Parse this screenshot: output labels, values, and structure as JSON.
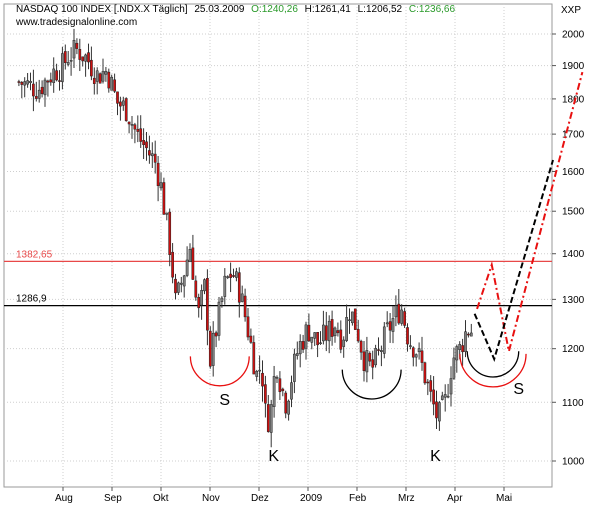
{
  "header": {
    "title": "NASDAQ 100 INDEX [.NDX.X Täglich]",
    "date": "25.03.2009",
    "open": "O:1240,26",
    "high": "H:1261,41",
    "low": "L:1206,52",
    "close": "C:1236,66",
    "website": "www.tradesignalonline.com",
    "currency": "XXP"
  },
  "colors": {
    "open": "#2a9a2a",
    "close": "#2a9a2a",
    "resistance_line": "#e84848",
    "support_line": "#000000",
    "projection_red": "#e81010",
    "projection_black": "#000000",
    "up_candle": "#808080",
    "down_candle": "#cc1010"
  },
  "chart_data": {
    "type": "candlestick",
    "x_tick_labels": [
      "Aug",
      "Sep",
      "Okt",
      "Nov",
      "Dez",
      "2009",
      "Feb",
      "Mrz",
      "Apr",
      "Mai"
    ],
    "y_ticks": [
      1000,
      1100,
      1200,
      1300,
      1400,
      1500,
      1600,
      1700,
      1800,
      1900,
      2000
    ],
    "ylim": [
      950,
      2060
    ],
    "y_scale": "log",
    "horizontal_levels": [
      {
        "label": "1382,65",
        "value": 1382.65,
        "color": "#e84848"
      },
      {
        "label": "1286,9",
        "value": 1286.9,
        "color": "#000000"
      }
    ],
    "pattern_labels": [
      {
        "text": "S",
        "month_pos": 3.3,
        "value": 1095
      },
      {
        "text": "K",
        "month_pos": 4.3,
        "value": 1000
      },
      {
        "text": "K",
        "month_pos": 7.6,
        "value": 1000
      },
      {
        "text": "S",
        "month_pos": 9.3,
        "value": 1115
      }
    ],
    "pattern_arcs": [
      {
        "color": "#e81010",
        "month_start": 2.6,
        "month_end": 3.8,
        "value": 1185
      },
      {
        "color": "#000000",
        "month_start": 5.7,
        "month_end": 6.9,
        "value": 1160
      },
      {
        "color": "#000000",
        "month_start": 8.25,
        "month_end": 9.3,
        "value": 1195
      },
      {
        "color": "#e81010",
        "month_start": 8.1,
        "month_end": 9.45,
        "value": 1190
      }
    ],
    "close_series": [
      {
        "month_pos": -0.9,
        "value": 1850
      },
      {
        "month_pos": -0.5,
        "value": 1830
      },
      {
        "month_pos": -0.2,
        "value": 1880
      },
      {
        "month_pos": 0.0,
        "value": 1900
      },
      {
        "month_pos": 0.1,
        "value": 1930
      },
      {
        "month_pos": 0.3,
        "value": 1950
      },
      {
        "month_pos": 0.5,
        "value": 1920
      },
      {
        "month_pos": 0.7,
        "value": 1870
      },
      {
        "month_pos": 0.9,
        "value": 1885
      },
      {
        "month_pos": 1.1,
        "value": 1790
      },
      {
        "month_pos": 1.3,
        "value": 1770
      },
      {
        "month_pos": 1.5,
        "value": 1700
      },
      {
        "month_pos": 1.7,
        "value": 1660
      },
      {
        "month_pos": 1.9,
        "value": 1620
      },
      {
        "month_pos": 2.0,
        "value": 1560
      },
      {
        "month_pos": 2.1,
        "value": 1480
      },
      {
        "month_pos": 2.2,
        "value": 1400
      },
      {
        "month_pos": 2.3,
        "value": 1290
      },
      {
        "month_pos": 2.45,
        "value": 1350
      },
      {
        "month_pos": 2.6,
        "value": 1420
      },
      {
        "month_pos": 2.75,
        "value": 1260
      },
      {
        "month_pos": 2.9,
        "value": 1330
      },
      {
        "month_pos": 3.0,
        "value": 1175
      },
      {
        "month_pos": 3.15,
        "value": 1250
      },
      {
        "month_pos": 3.3,
        "value": 1330
      },
      {
        "month_pos": 3.45,
        "value": 1360
      },
      {
        "month_pos": 3.6,
        "value": 1320
      },
      {
        "month_pos": 3.75,
        "value": 1250
      },
      {
        "month_pos": 3.85,
        "value": 1200
      },
      {
        "month_pos": 3.95,
        "value": 1150
      },
      {
        "month_pos": 4.05,
        "value": 1170
      },
      {
        "month_pos": 4.15,
        "value": 1060
      },
      {
        "month_pos": 4.25,
        "value": 1090
      },
      {
        "month_pos": 4.35,
        "value": 1180
      },
      {
        "month_pos": 4.45,
        "value": 1130
      },
      {
        "month_pos": 4.55,
        "value": 1100
      },
      {
        "month_pos": 4.65,
        "value": 1140
      },
      {
        "month_pos": 4.8,
        "value": 1200
      },
      {
        "month_pos": 5.0,
        "value": 1240
      },
      {
        "month_pos": 5.2,
        "value": 1210
      },
      {
        "month_pos": 5.4,
        "value": 1230
      },
      {
        "month_pos": 5.55,
        "value": 1250
      },
      {
        "month_pos": 5.7,
        "value": 1220
      },
      {
        "month_pos": 5.85,
        "value": 1280
      },
      {
        "month_pos": 6.0,
        "value": 1240
      },
      {
        "month_pos": 6.15,
        "value": 1180
      },
      {
        "month_pos": 6.3,
        "value": 1160
      },
      {
        "month_pos": 6.45,
        "value": 1190
      },
      {
        "month_pos": 6.6,
        "value": 1230
      },
      {
        "month_pos": 6.75,
        "value": 1260
      },
      {
        "month_pos": 6.9,
        "value": 1285
      },
      {
        "month_pos": 7.05,
        "value": 1220
      },
      {
        "month_pos": 7.2,
        "value": 1200
      },
      {
        "month_pos": 7.35,
        "value": 1160
      },
      {
        "month_pos": 7.5,
        "value": 1110
      },
      {
        "month_pos": 7.65,
        "value": 1070
      },
      {
        "month_pos": 7.8,
        "value": 1100
      },
      {
        "month_pos": 7.95,
        "value": 1180
      },
      {
        "month_pos": 8.1,
        "value": 1200
      },
      {
        "month_pos": 8.25,
        "value": 1240
      },
      {
        "month_pos": 8.35,
        "value": 1236
      }
    ],
    "projection_red": [
      {
        "month_pos": 8.45,
        "value": 1280
      },
      {
        "month_pos": 8.75,
        "value": 1375
      },
      {
        "month_pos": 9.1,
        "value": 1195
      },
      {
        "month_pos": 10.6,
        "value": 1880
      }
    ],
    "projection_black": [
      {
        "month_pos": 8.4,
        "value": 1270
      },
      {
        "month_pos": 8.8,
        "value": 1180
      },
      {
        "month_pos": 10.0,
        "value": 1630
      }
    ]
  }
}
